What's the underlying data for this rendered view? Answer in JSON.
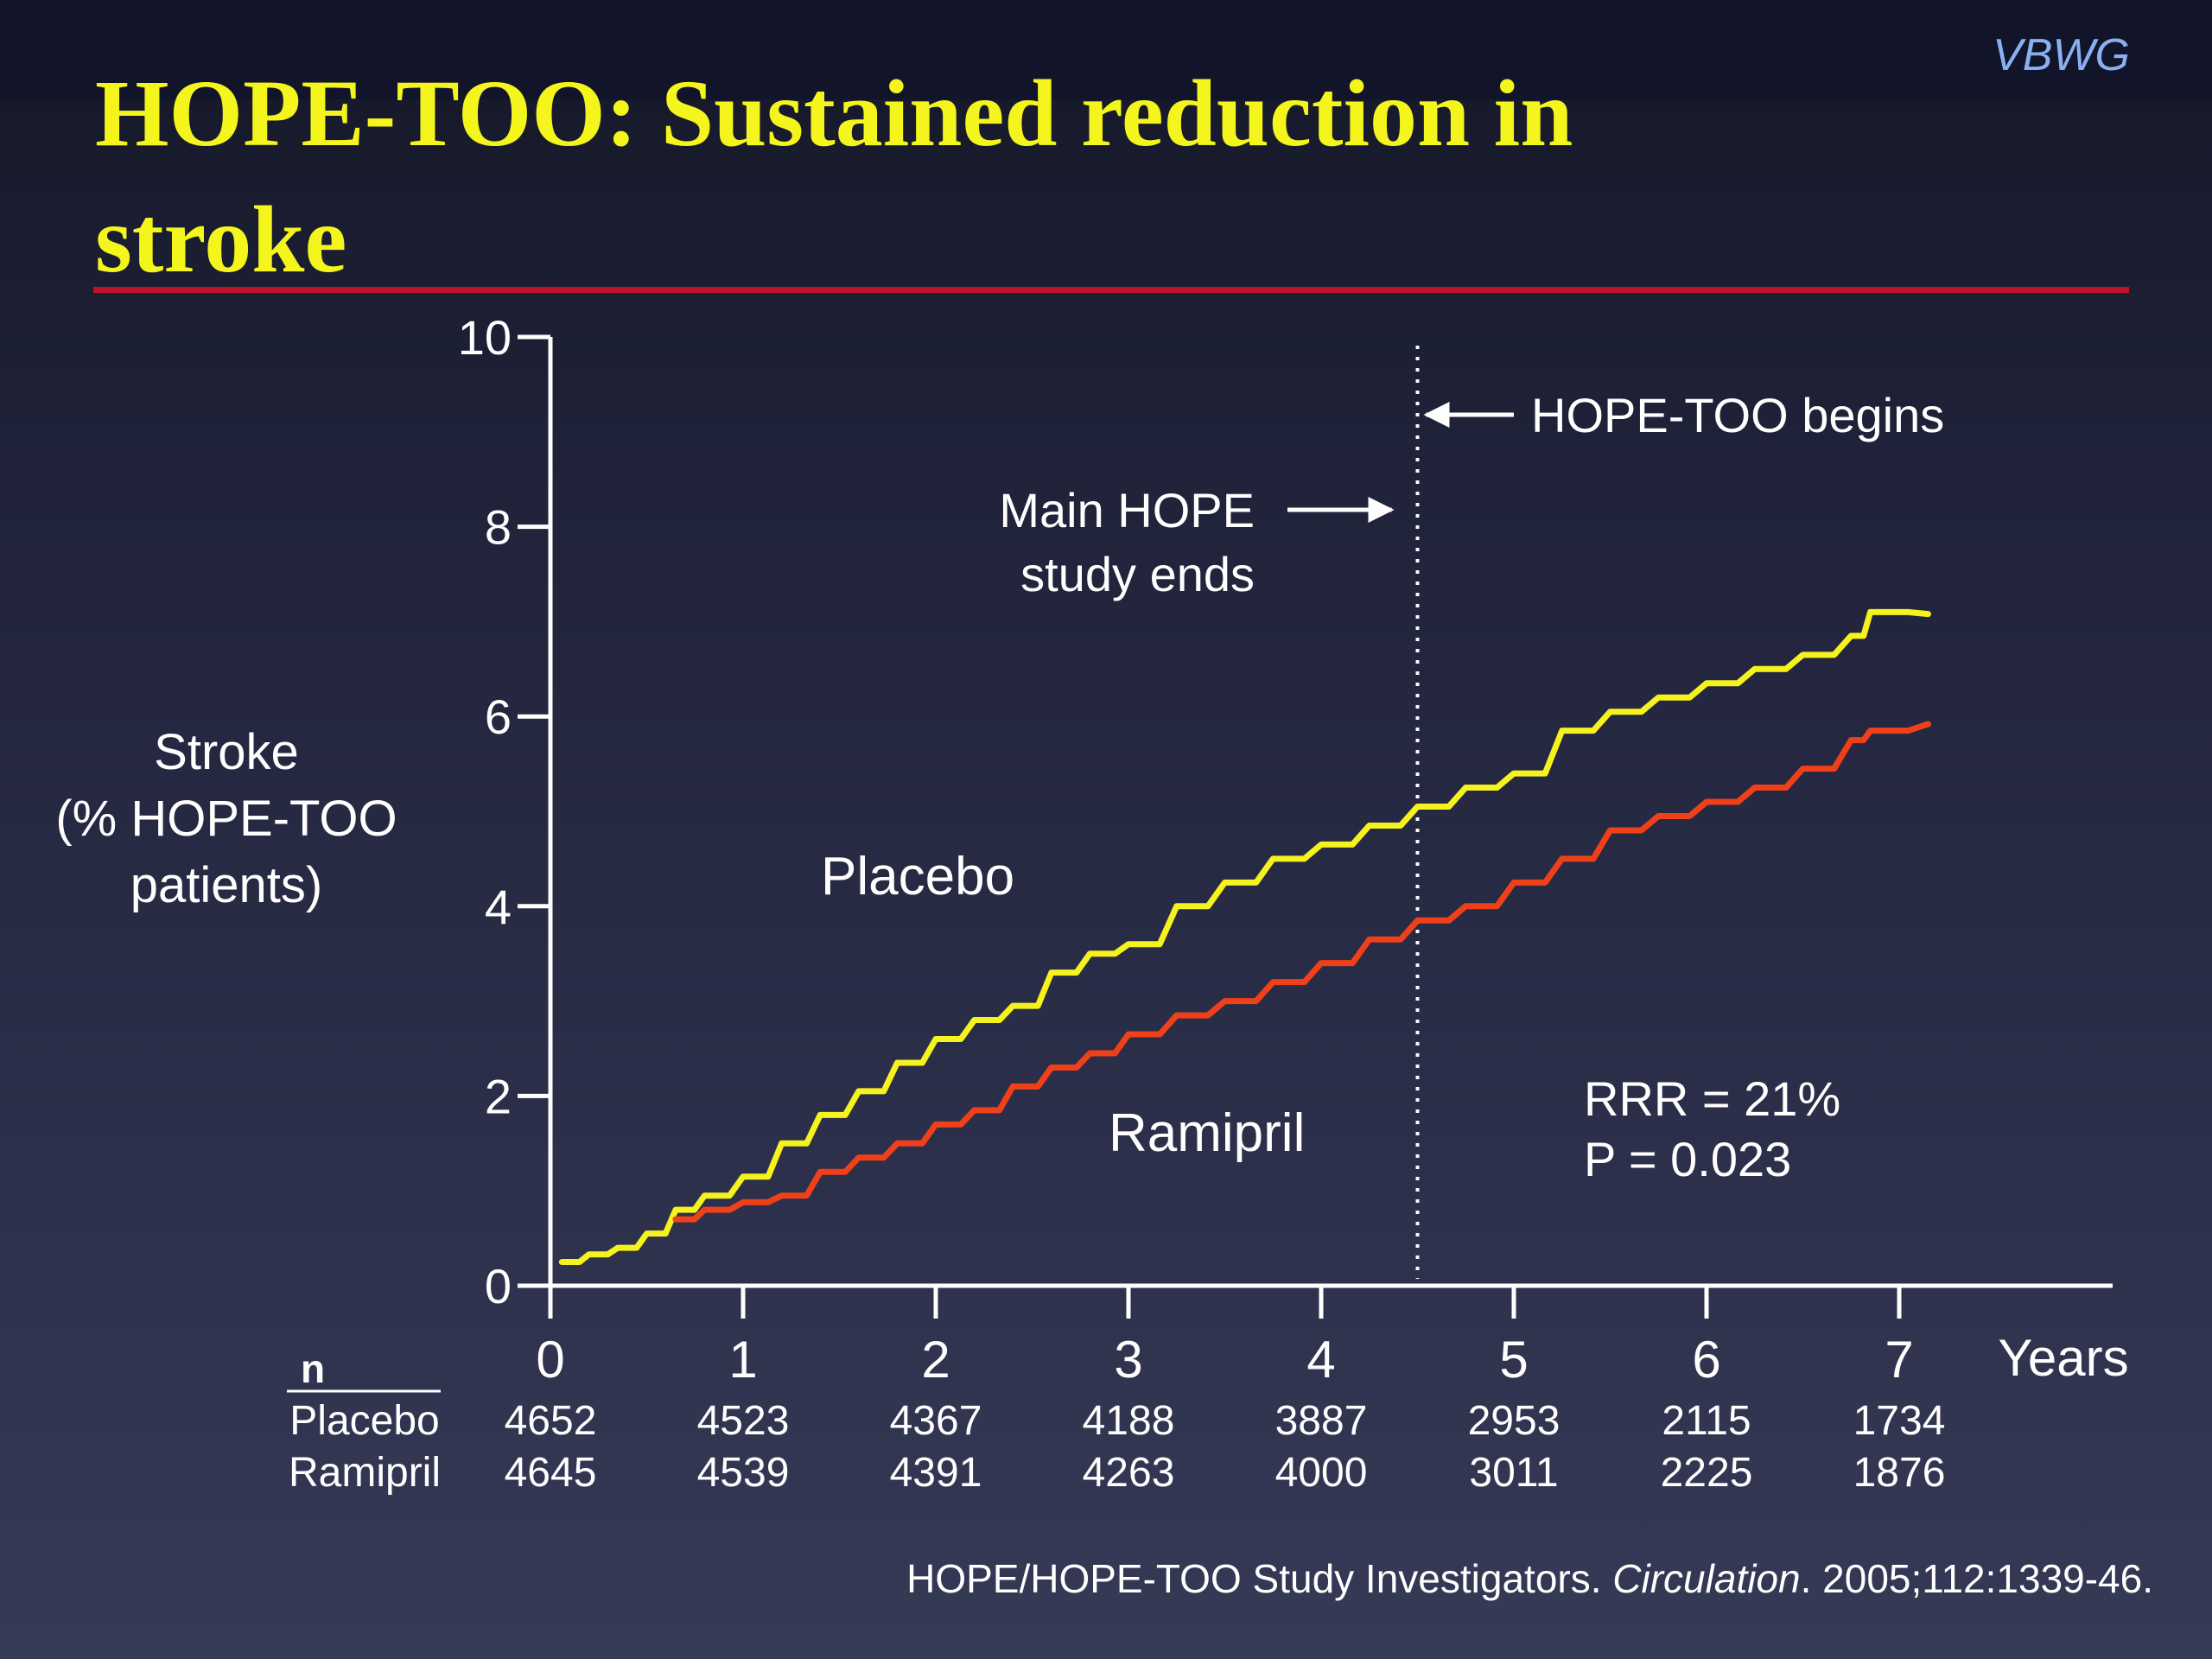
{
  "slide": {
    "watermark": "VBWG",
    "title": "HOPE-TOO: Sustained reduction in stroke",
    "citation": {
      "prefix": "HOPE/HOPE-TOO Study Investigators. ",
      "journal": "Circulation",
      "suffix": ". 2005;112:1339-46."
    }
  },
  "chart_data": {
    "type": "line",
    "title": "",
    "ylabel": [
      "Stroke",
      "(% HOPE-TOO",
      "patients)"
    ],
    "xlabel": "Years",
    "xlim": [
      0,
      8
    ],
    "ylim": [
      0,
      10
    ],
    "x_ticks": [
      0,
      1,
      2,
      3,
      4,
      5,
      6,
      7
    ],
    "y_ticks": [
      0,
      2,
      4,
      6,
      8,
      10
    ],
    "grid": false,
    "legend": "none (series labelled directly on the plot)",
    "colors": {
      "Placebo": "#f5f21e",
      "Ramipril": "#f0401a",
      "reference_line": "#ffffff"
    },
    "series": [
      {
        "name": "Placebo",
        "x": [
          0.06,
          0.2,
          0.35,
          0.5,
          0.65,
          0.8,
          1.0,
          1.2,
          1.4,
          1.6,
          1.8,
          2.0,
          2.2,
          2.4,
          2.6,
          2.8,
          3.0,
          3.25,
          3.5,
          3.75,
          4.0,
          4.25,
          4.5,
          4.75,
          5.0,
          5.25,
          5.5,
          5.75,
          6.0,
          6.25,
          6.5,
          6.75,
          6.85,
          7.15
        ],
        "values": [
          0.25,
          0.33,
          0.4,
          0.55,
          0.8,
          0.95,
          1.15,
          1.5,
          1.8,
          2.05,
          2.35,
          2.6,
          2.8,
          2.95,
          3.3,
          3.5,
          3.6,
          4.0,
          4.25,
          4.5,
          4.65,
          4.85,
          5.05,
          5.25,
          5.4,
          5.85,
          6.05,
          6.2,
          6.35,
          6.5,
          6.65,
          6.85,
          7.1,
          7.08
        ]
      },
      {
        "name": "Ramipril",
        "x": [
          0.65,
          0.8,
          1.0,
          1.2,
          1.4,
          1.6,
          1.8,
          2.0,
          2.2,
          2.4,
          2.6,
          2.8,
          3.0,
          3.25,
          3.5,
          3.75,
          4.0,
          4.25,
          4.5,
          4.75,
          5.0,
          5.25,
          5.5,
          5.75,
          6.0,
          6.25,
          6.5,
          6.75,
          6.85,
          7.15
        ],
        "values": [
          0.7,
          0.8,
          0.88,
          0.95,
          1.2,
          1.35,
          1.5,
          1.7,
          1.85,
          2.1,
          2.3,
          2.45,
          2.65,
          2.85,
          3.0,
          3.2,
          3.4,
          3.65,
          3.85,
          4.0,
          4.25,
          4.5,
          4.8,
          4.95,
          5.1,
          5.25,
          5.45,
          5.75,
          5.85,
          5.92
        ]
      }
    ],
    "reference_line": {
      "x": 4.5,
      "style": "dotted"
    },
    "annotations": {
      "hope_too_begins": "HOPE-TOO begins",
      "main_hope_ends": [
        "Main HOPE",
        "study ends"
      ],
      "placebo_label": "Placebo",
      "ramipril_label": "Ramipril",
      "stats": [
        "RRR = 21%",
        "P = 0.023"
      ]
    },
    "at_risk_table": {
      "header": "n",
      "rows": [
        {
          "name": "Placebo",
          "values": [
            4652,
            4523,
            4367,
            4188,
            3887,
            2953,
            2115,
            1734
          ]
        },
        {
          "name": "Ramipril",
          "values": [
            4645,
            4539,
            4391,
            4263,
            4000,
            3011,
            2225,
            1876
          ]
        }
      ]
    }
  }
}
